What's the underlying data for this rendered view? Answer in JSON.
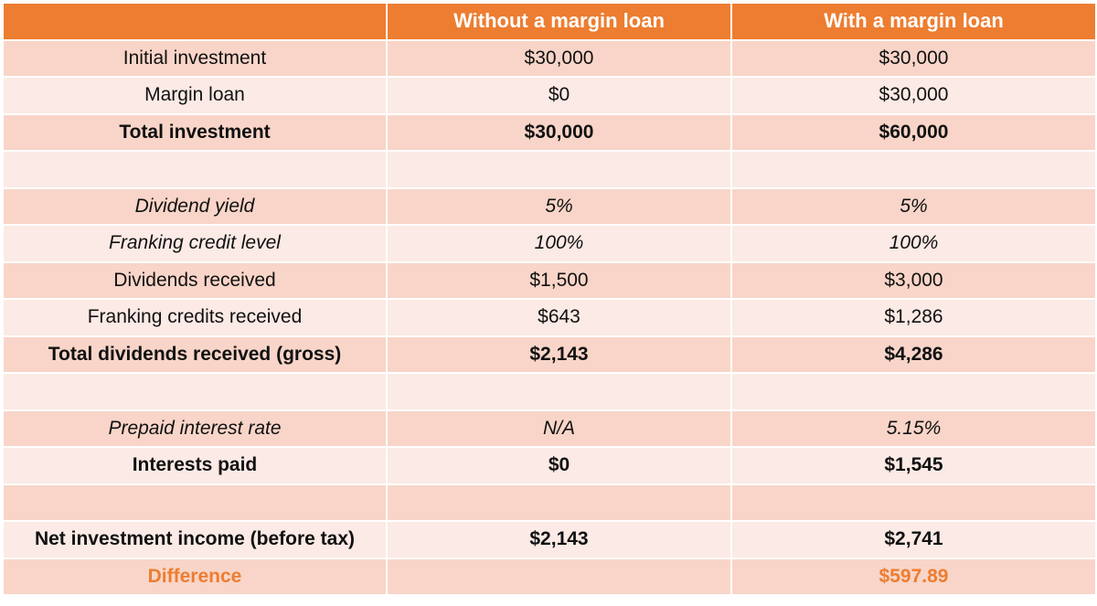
{
  "header": {
    "col0": "",
    "col1": "Without a margin loan",
    "col2": "With a margin loan"
  },
  "rows": [
    {
      "label": "Initial investment",
      "without": "$30,000",
      "with": "$30,000",
      "style": "normal"
    },
    {
      "label": "Margin loan",
      "without": "$0",
      "with": "$30,000",
      "style": "normal"
    },
    {
      "label": "Total investment",
      "without": "$30,000",
      "with": "$60,000",
      "style": "bold"
    },
    {
      "label": "",
      "without": "",
      "with": "",
      "style": "spacer"
    },
    {
      "label": "Dividend yield",
      "without": "5%",
      "with": "5%",
      "style": "italic"
    },
    {
      "label": "Franking credit level",
      "without": "100%",
      "with": "100%",
      "style": "italic"
    },
    {
      "label": "Dividends received",
      "without": "$1,500",
      "with": "$3,000",
      "style": "normal"
    },
    {
      "label": "Franking credits received",
      "without": "$643",
      "with": "$1,286",
      "style": "normal"
    },
    {
      "label": "Total dividends received (gross)",
      "without": "$2,143",
      "with": "$4,286",
      "style": "bold"
    },
    {
      "label": "",
      "without": "",
      "with": "",
      "style": "spacer"
    },
    {
      "label": "Prepaid interest rate",
      "without": "N/A",
      "with": "5.15%",
      "style": "italic"
    },
    {
      "label": "Interests paid",
      "without": "$0",
      "with": "$1,545",
      "style": "bold"
    },
    {
      "label": "",
      "without": "",
      "with": "",
      "style": "spacer"
    },
    {
      "label": "Net investment income (before tax)",
      "without": "$2,143",
      "with": "$2,741",
      "style": "bold"
    },
    {
      "label": "Difference",
      "without": "",
      "with": "$597.89",
      "style": "accent"
    }
  ],
  "colors": {
    "header": "#ED7D31",
    "row_dark": "#F8D5C8",
    "row_light": "#FBEAE5",
    "accent_text": "#ED7D31"
  }
}
